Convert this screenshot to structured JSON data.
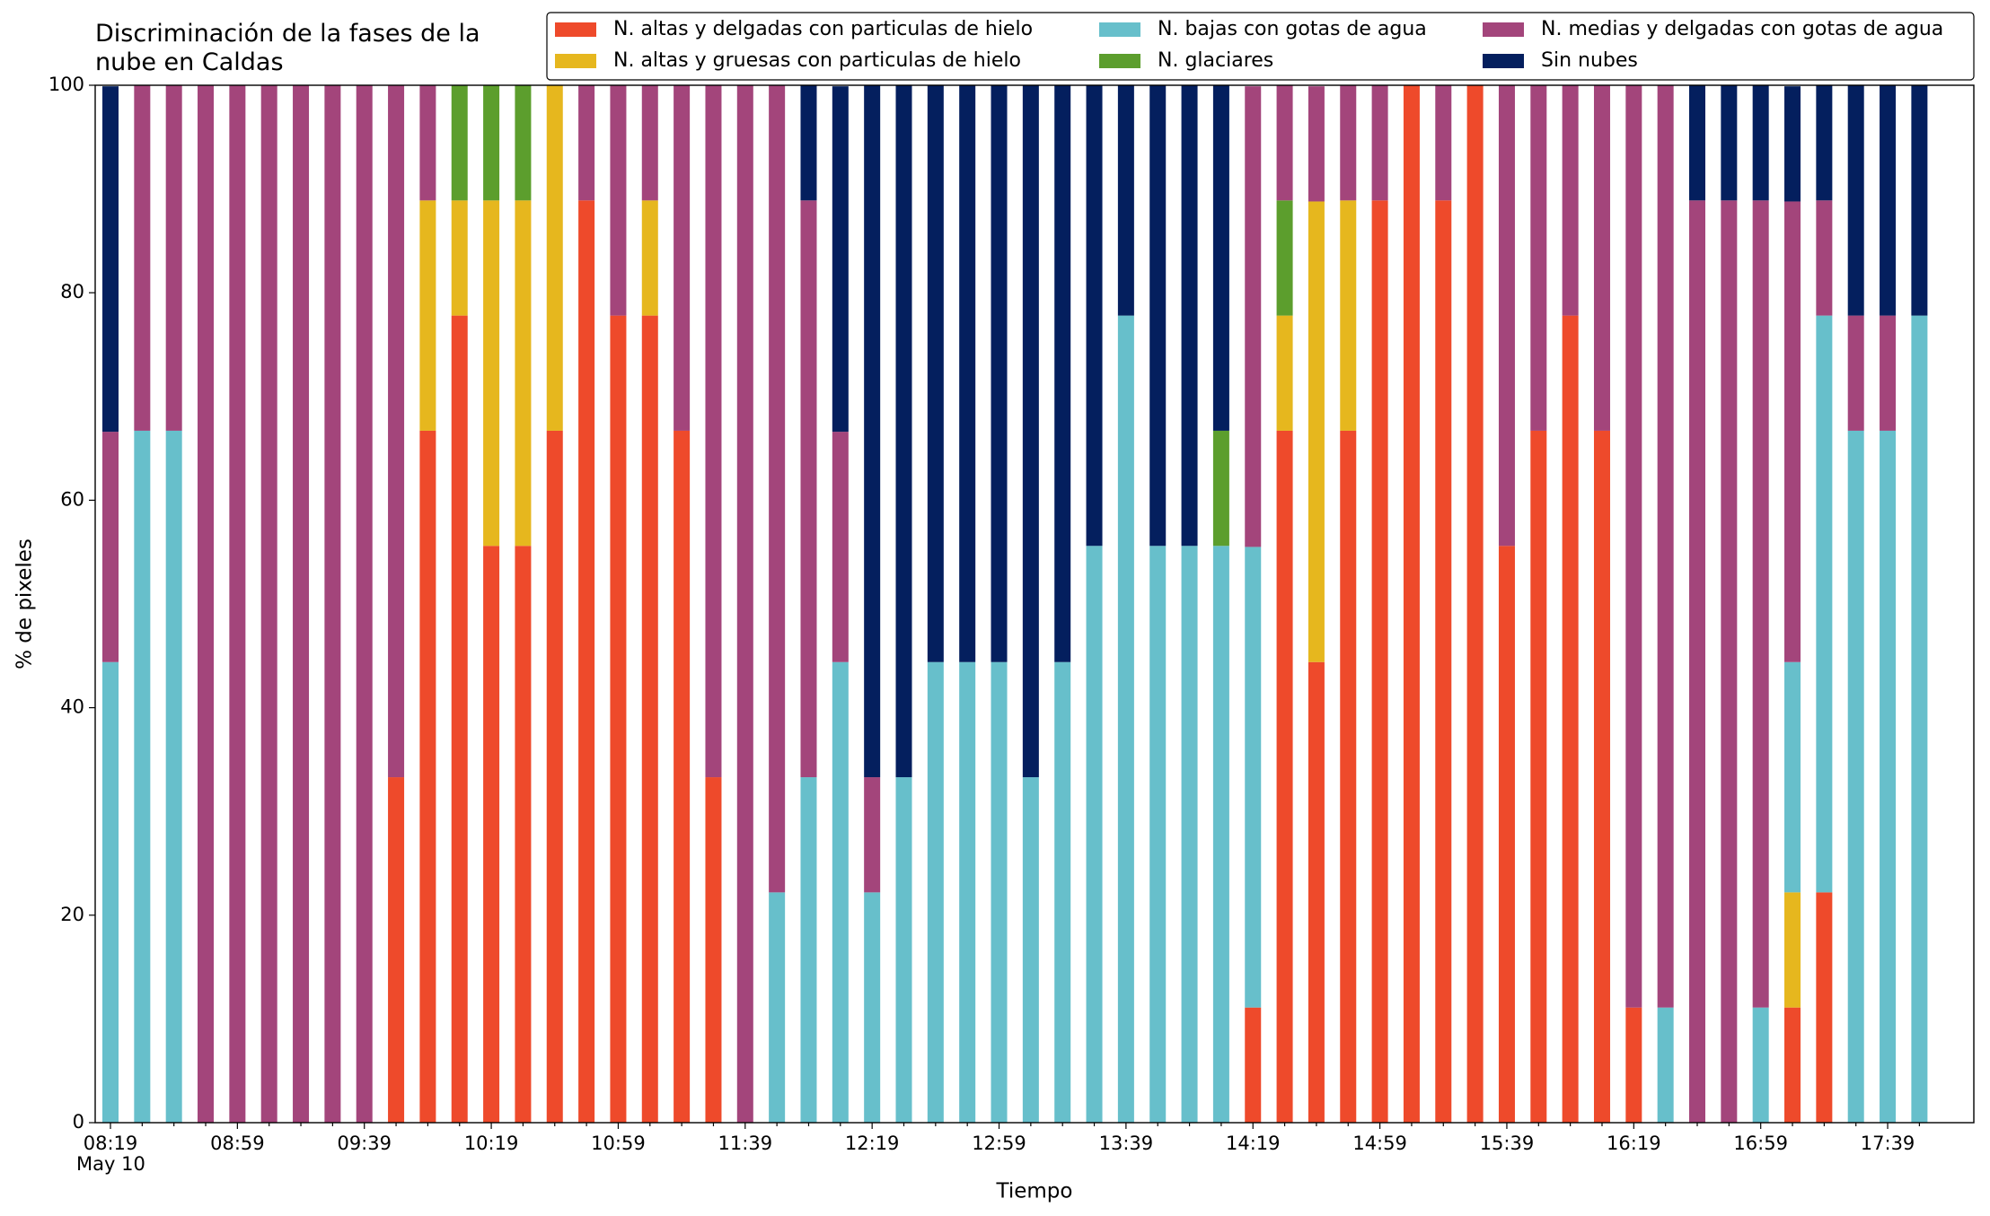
{
  "chart_data": {
    "type": "stacked_bar",
    "title": "Discriminación de la fases de la\nnube en Caldas",
    "xlabel": "Tiempo",
    "ylabel": "% de pixeles",
    "date_label": "May 10",
    "categories": [
      "08:19",
      null,
      null,
      null,
      "08:59",
      null,
      null,
      null,
      "09:39",
      null,
      null,
      null,
      "10:19",
      null,
      null,
      null,
      "10:59",
      null,
      null,
      null,
      "11:39",
      null,
      null,
      null,
      "12:19",
      null,
      null,
      null,
      "12:59",
      null,
      null,
      null,
      "13:39",
      null,
      null,
      null,
      "14:19",
      null,
      null,
      null,
      "14:59",
      null,
      null,
      null,
      "15:39",
      null,
      null,
      null,
      "16:19",
      null,
      null,
      null,
      "16:59",
      null,
      null,
      null,
      "17:39",
      null
    ],
    "ylim": [
      0,
      100
    ],
    "yticks": [
      0,
      20,
      40,
      60,
      80,
      100
    ],
    "grid": false,
    "legend": "upper right",
    "series": [
      {
        "name": "N. altas y delgadas con particulas de hielo",
        "color": "#ee4a2b",
        "values": [
          0,
          0,
          0,
          0,
          0,
          0,
          0,
          0,
          0,
          33.3,
          66.7,
          77.8,
          55.6,
          55.6,
          66.7,
          88.9,
          77.8,
          77.8,
          66.7,
          33.3,
          0,
          0,
          0,
          0,
          0,
          0,
          0,
          0,
          0,
          0,
          0,
          0,
          0,
          0,
          0,
          0,
          11.1,
          66.7,
          44.4,
          66.7,
          88.9,
          100,
          88.9,
          100,
          55.6,
          66.7,
          77.8,
          66.7,
          11.1,
          0,
          0,
          0,
          0,
          11.1,
          22.2,
          0,
          0,
          0
        ]
      },
      {
        "name": "N. altas y gruesas con particulas de hielo",
        "color": "#e6b71e",
        "values": [
          0,
          0,
          0,
          0,
          0,
          0,
          0,
          0,
          0,
          0,
          22.2,
          11.1,
          33.3,
          33.3,
          33.3,
          0,
          0,
          11.1,
          0,
          0,
          0,
          0,
          0,
          0,
          0,
          0,
          0,
          0,
          0,
          0,
          0,
          0,
          0,
          0,
          0,
          0,
          0,
          11.1,
          44.4,
          22.2,
          0,
          0,
          0,
          0,
          0,
          0,
          0,
          0,
          0,
          0,
          0,
          0,
          0,
          11.1,
          0,
          0,
          0,
          0
        ]
      },
      {
        "name": "N. bajas con gotas de agua",
        "color": "#67bfcb",
        "values": [
          44.4,
          66.7,
          66.7,
          0,
          0,
          0,
          0,
          0,
          0,
          0,
          0,
          0,
          0,
          0,
          0,
          0,
          0,
          0,
          0,
          0,
          0,
          22.2,
          33.3,
          44.4,
          22.2,
          33.3,
          44.4,
          44.4,
          44.4,
          33.3,
          44.4,
          55.6,
          77.8,
          55.6,
          55.6,
          55.6,
          44.4,
          0,
          0,
          0,
          0,
          0,
          0,
          0,
          0,
          0,
          0,
          0,
          0,
          11.1,
          0,
          0,
          11.1,
          22.2,
          55.6,
          66.7,
          66.7,
          77.8
        ]
      },
      {
        "name": "N. glaciares",
        "color": "#5c9e2d",
        "values": [
          0,
          0,
          0,
          0,
          0,
          0,
          0,
          0,
          0,
          0,
          0,
          11.1,
          11.1,
          11.1,
          0,
          0,
          0,
          0,
          0,
          0,
          0,
          0,
          0,
          0,
          0,
          0,
          0,
          0,
          0,
          0,
          0,
          0,
          0,
          0,
          0,
          11.1,
          0,
          11.1,
          0,
          0,
          0,
          0,
          0,
          0,
          0,
          0,
          0,
          0,
          0,
          0,
          0,
          0,
          0,
          0,
          0,
          0,
          0,
          0
        ]
      },
      {
        "name": "N. medias y delgadas con gotas de agua",
        "color": "#a3457b",
        "values": [
          22.2,
          33.3,
          33.3,
          100,
          100,
          100,
          100,
          100,
          100,
          66.7,
          11.1,
          0,
          0,
          0,
          0,
          11.1,
          22.2,
          11.1,
          33.3,
          66.7,
          100,
          77.8,
          55.6,
          22.2,
          11.1,
          0,
          0,
          0,
          0,
          0,
          0,
          0,
          0,
          0,
          0,
          0,
          44.4,
          11.1,
          11.1,
          11.1,
          11.1,
          0,
          11.1,
          0,
          44.4,
          33.3,
          22.2,
          33.3,
          88.9,
          88.9,
          88.9,
          88.9,
          77.8,
          44.4,
          11.1,
          11.1,
          11.1,
          0
        ]
      },
      {
        "name": "Sin nubes",
        "color": "#041f5e",
        "values": [
          33.3,
          0,
          0,
          0,
          0,
          0,
          0,
          0,
          0,
          0,
          0,
          0,
          0,
          0,
          0,
          0,
          0,
          0,
          0,
          0,
          0,
          0,
          11.1,
          33.3,
          66.7,
          66.7,
          55.6,
          55.6,
          55.6,
          66.7,
          55.6,
          44.4,
          22.2,
          44.4,
          44.4,
          33.3,
          0,
          0,
          0,
          0,
          0,
          0,
          0,
          0,
          0,
          0,
          0,
          0,
          0,
          0,
          11.1,
          11.1,
          11.1,
          11.1,
          11.1,
          22.2,
          22.2,
          22.2
        ]
      }
    ]
  }
}
